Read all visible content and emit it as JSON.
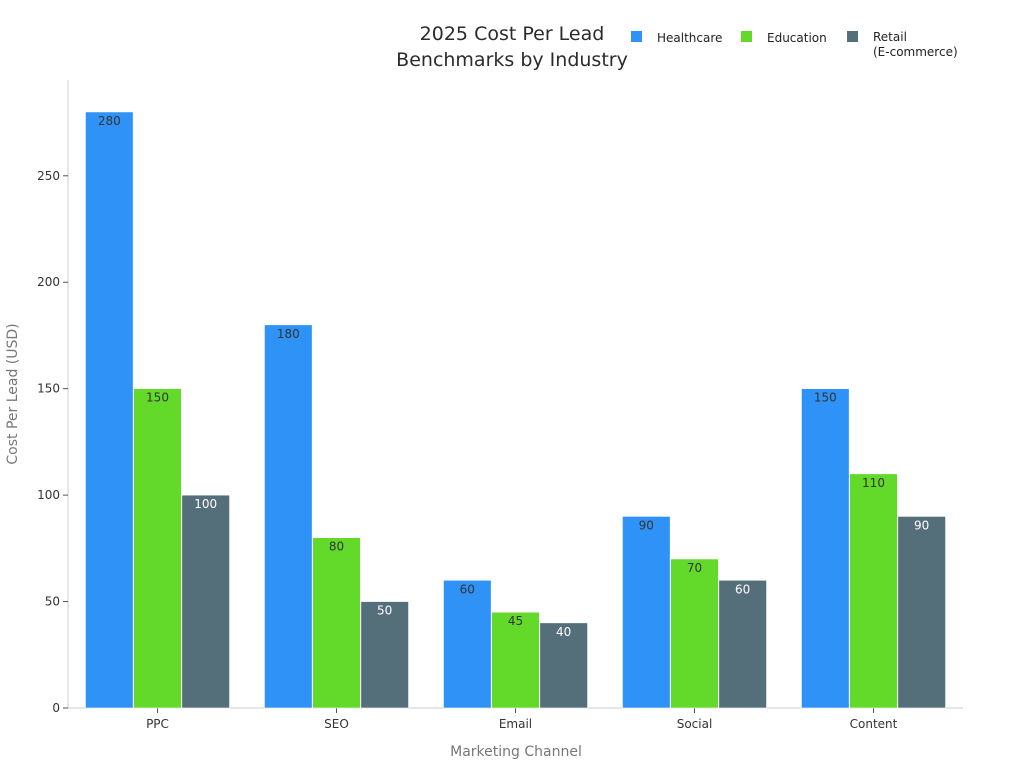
{
  "chart_data": {
    "type": "bar",
    "title_lines": [
      "2025 Cost Per Lead",
      "Benchmarks by Industry"
    ],
    "xlabel": "Marketing Channel",
    "ylabel": "Cost Per Lead (USD)",
    "categories": [
      "PPC",
      "SEO",
      "Email",
      "Social",
      "Content"
    ],
    "ylim": [
      0,
      295
    ],
    "yticks": [
      0,
      50,
      100,
      150,
      200,
      250
    ],
    "grid": false,
    "legend_position": "top-right",
    "series": [
      {
        "name": "Healthcare",
        "legend_lines": [
          "Healthcare"
        ],
        "color": "#2f92f7",
        "label_color": "#333333",
        "values": [
          280,
          180,
          60,
          90,
          150
        ]
      },
      {
        "name": "Education",
        "legend_lines": [
          "Education"
        ],
        "color": "#63d929",
        "label_color": "#333333",
        "values": [
          150,
          80,
          45,
          70,
          110
        ]
      },
      {
        "name": "Retail (E-commerce)",
        "legend_lines": [
          "Retail",
          "(E-commerce)"
        ],
        "color": "#546e7a",
        "label_color": "#ffffff",
        "values": [
          100,
          50,
          40,
          60,
          90
        ]
      }
    ]
  }
}
